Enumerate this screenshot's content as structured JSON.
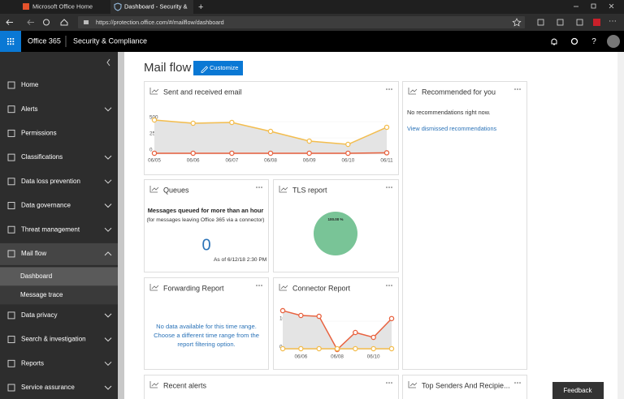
{
  "browser": {
    "tabs": [
      "Microsoft Office Home",
      "Dashboard - Security &"
    ],
    "url": "https://protection.office.com/#/mailflow/dashboard"
  },
  "header": {
    "brand": "Office 365",
    "app": "Security & Compliance"
  },
  "nav": {
    "items": [
      {
        "label": "Home",
        "expandable": false
      },
      {
        "label": "Alerts",
        "expandable": true
      },
      {
        "label": "Permissions",
        "expandable": false
      },
      {
        "label": "Classifications",
        "expandable": true
      },
      {
        "label": "Data loss prevention",
        "expandable": true
      },
      {
        "label": "Data governance",
        "expandable": true
      },
      {
        "label": "Threat management",
        "expandable": true
      },
      {
        "label": "Mail flow",
        "expandable": true,
        "sub": [
          "Dashboard",
          "Message trace"
        ]
      },
      {
        "label": "Data privacy",
        "expandable": true
      },
      {
        "label": "Search & investigation",
        "expandable": true
      },
      {
        "label": "Reports",
        "expandable": true
      },
      {
        "label": "Service assurance",
        "expandable": true
      }
    ]
  },
  "content": {
    "title": "Mail flow",
    "button": "Customize",
    "sent_email": {
      "title": "Sent and received email",
      "chart": {
        "type": "line",
        "categories": [
          "06/05",
          "06/06",
          "06/07",
          "06/08",
          "06/09",
          "06/10",
          "06/11"
        ],
        "ylim": [
          0,
          550
        ],
        "yticks": [
          0,
          250,
          500
        ],
        "series": [
          {
            "color": "#f3bd4e",
            "values": [
              525,
              475,
              488,
              350,
              200,
              150,
              413
            ]
          },
          {
            "color": "#e8623f",
            "values": [
              13,
              13,
              13,
              13,
              13,
              13,
              20
            ]
          }
        ]
      }
    },
    "recommended": {
      "title": "Recommended for you",
      "message": "No recommendations right now.",
      "link": "View dismissed recommendations"
    },
    "queues": {
      "title": "Queues",
      "heading": "Messages queued for more than an hour",
      "note": "(for messages leaving Office 365 via a connector)",
      "count": 0,
      "as_of": "As of 6/12/18 2:30 PM"
    },
    "tls": {
      "title": "TLS report",
      "chart": {
        "type": "pie",
        "values": [
          100
        ],
        "value_labels": [
          "100.00 %"
        ],
        "color": "#79c497"
      }
    },
    "forwarding": {
      "title": "Forwarding Report",
      "message": "No data available for this time range. Choose a different time range from the report filtering option."
    },
    "connector": {
      "title": "Connector Report",
      "chart": {
        "type": "line",
        "categories": [
          null,
          "06/06",
          null,
          "06/08",
          null,
          "06/10",
          null
        ],
        "ylim": [
          0,
          150
        ],
        "yticks": [
          0,
          100
        ],
        "series": [
          {
            "color": "#e8623f",
            "values": [
              137,
              120,
              117,
              0,
              60,
              43,
              109
            ]
          },
          {
            "color": "#f3bd4e",
            "values": [
              3,
              3,
              3,
              3,
              3,
              3,
              3
            ]
          }
        ]
      }
    },
    "recent_alerts": {
      "title": "Recent alerts"
    },
    "top_senders": {
      "title": "Top Senders And Recipie..."
    }
  },
  "feedback": "Feedback"
}
